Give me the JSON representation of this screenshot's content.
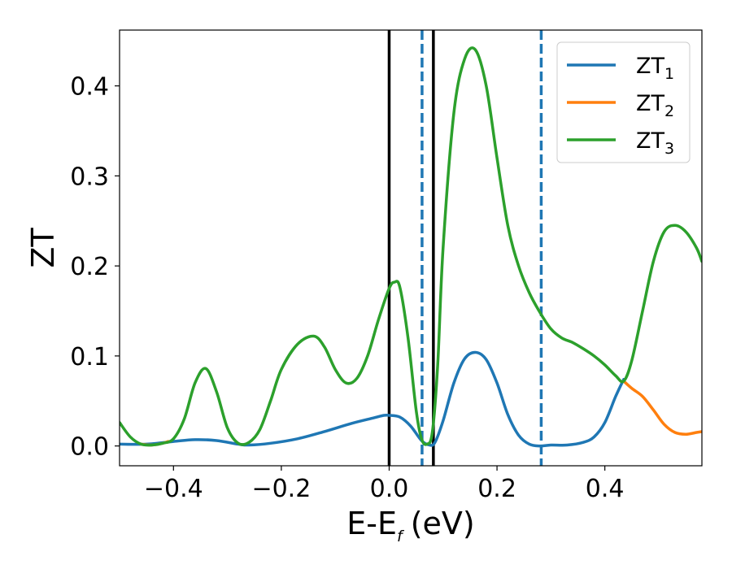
{
  "chart_data": {
    "type": "line",
    "xlabel": "E-E",
    "xlabel_sub": "f",
    "xlabel_unit": "(eV)",
    "ylabel": "ZT",
    "xlim": [
      -0.5,
      0.58
    ],
    "ylim": [
      -0.022,
      0.462
    ],
    "x_ticks": [
      -0.4,
      -0.2,
      0.0,
      0.2,
      0.4
    ],
    "x_tick_labels": [
      "−0.4",
      "−0.2",
      "0.0",
      "0.2",
      "0.4"
    ],
    "y_ticks": [
      0.0,
      0.1,
      0.2,
      0.3,
      0.4
    ],
    "y_tick_labels": [
      "0.0",
      "0.1",
      "0.2",
      "0.3",
      "0.4"
    ],
    "grid": false,
    "legend_position": "top-right",
    "vertical_lines": [
      {
        "x": 0.0,
        "style": "solid",
        "color": "#000000"
      },
      {
        "x": 0.082,
        "style": "solid",
        "color": "#000000"
      },
      {
        "x": 0.061,
        "style": "dashed",
        "color": "#1f77b4"
      },
      {
        "x": 0.282,
        "style": "dashed",
        "color": "#1f77b4"
      }
    ],
    "series": [
      {
        "name": "ZT",
        "name_sub": "1",
        "color": "#1f77b4",
        "points": [
          [
            -0.5,
            0.002
          ],
          [
            -0.45,
            0.002
          ],
          [
            -0.4,
            0.005
          ],
          [
            -0.36,
            0.007
          ],
          [
            -0.32,
            0.006
          ],
          [
            -0.28,
            0.002
          ],
          [
            -0.26,
            0.001
          ],
          [
            -0.22,
            0.003
          ],
          [
            -0.17,
            0.008
          ],
          [
            -0.12,
            0.016
          ],
          [
            -0.07,
            0.025
          ],
          [
            -0.03,
            0.031
          ],
          [
            -0.01,
            0.034
          ],
          [
            0.0,
            0.034
          ],
          [
            0.02,
            0.032
          ],
          [
            0.04,
            0.022
          ],
          [
            0.06,
            0.006
          ],
          [
            0.075,
            0.001
          ],
          [
            0.085,
            0.004
          ],
          [
            0.1,
            0.028
          ],
          [
            0.12,
            0.07
          ],
          [
            0.14,
            0.097
          ],
          [
            0.16,
            0.104
          ],
          [
            0.18,
            0.096
          ],
          [
            0.2,
            0.07
          ],
          [
            0.22,
            0.035
          ],
          [
            0.24,
            0.012
          ],
          [
            0.26,
            0.002
          ],
          [
            0.28,
            0.0
          ],
          [
            0.3,
            0.001
          ],
          [
            0.33,
            0.001
          ],
          [
            0.36,
            0.004
          ],
          [
            0.38,
            0.01
          ],
          [
            0.4,
            0.026
          ],
          [
            0.42,
            0.055
          ],
          [
            0.435,
            0.074
          ]
        ]
      },
      {
        "name": "ZT",
        "name_sub": "2",
        "color": "#ff7f0e",
        "points": [
          [
            -0.46,
            0.002
          ],
          [
            -0.44,
            0.001
          ],
          [
            -0.42,
            0.003
          ],
          [
            -0.41,
            0.005
          ],
          [
            0.435,
            0.072
          ],
          [
            0.45,
            0.064
          ],
          [
            0.47,
            0.055
          ],
          [
            0.49,
            0.04
          ],
          [
            0.51,
            0.024
          ],
          [
            0.53,
            0.015
          ],
          [
            0.55,
            0.013
          ],
          [
            0.57,
            0.015
          ],
          [
            0.58,
            0.016
          ]
        ]
      },
      {
        "name": "ZT",
        "name_sub": "3",
        "color": "#2ca02c",
        "points": [
          [
            -0.5,
            0.026
          ],
          [
            -0.48,
            0.01
          ],
          [
            -0.46,
            0.002
          ],
          [
            -0.44,
            0.001
          ],
          [
            -0.42,
            0.003
          ],
          [
            -0.4,
            0.008
          ],
          [
            -0.38,
            0.03
          ],
          [
            -0.36,
            0.07
          ],
          [
            -0.34,
            0.086
          ],
          [
            -0.32,
            0.06
          ],
          [
            -0.3,
            0.02
          ],
          [
            -0.28,
            0.003
          ],
          [
            -0.26,
            0.004
          ],
          [
            -0.24,
            0.018
          ],
          [
            -0.22,
            0.05
          ],
          [
            -0.2,
            0.085
          ],
          [
            -0.17,
            0.113
          ],
          [
            -0.14,
            0.122
          ],
          [
            -0.12,
            0.11
          ],
          [
            -0.1,
            0.085
          ],
          [
            -0.08,
            0.07
          ],
          [
            -0.06,
            0.075
          ],
          [
            -0.04,
            0.1
          ],
          [
            -0.02,
            0.14
          ],
          [
            0.0,
            0.175
          ],
          [
            0.01,
            0.182
          ],
          [
            0.02,
            0.176
          ],
          [
            0.035,
            0.12
          ],
          [
            0.05,
            0.04
          ],
          [
            0.06,
            0.008
          ],
          [
            0.07,
            0.002
          ],
          [
            0.08,
            0.015
          ],
          [
            0.09,
            0.09
          ],
          [
            0.1,
            0.22
          ],
          [
            0.12,
            0.37
          ],
          [
            0.14,
            0.43
          ],
          [
            0.16,
            0.44
          ],
          [
            0.18,
            0.4
          ],
          [
            0.2,
            0.32
          ],
          [
            0.22,
            0.245
          ],
          [
            0.24,
            0.2
          ],
          [
            0.26,
            0.17
          ],
          [
            0.28,
            0.148
          ],
          [
            0.3,
            0.13
          ],
          [
            0.32,
            0.12
          ],
          [
            0.34,
            0.115
          ],
          [
            0.36,
            0.108
          ],
          [
            0.38,
            0.1
          ],
          [
            0.4,
            0.09
          ],
          [
            0.42,
            0.078
          ],
          [
            0.435,
            0.072
          ],
          [
            0.45,
            0.095
          ],
          [
            0.47,
            0.15
          ],
          [
            0.49,
            0.205
          ],
          [
            0.51,
            0.238
          ],
          [
            0.53,
            0.245
          ],
          [
            0.55,
            0.238
          ],
          [
            0.57,
            0.22
          ],
          [
            0.58,
            0.205
          ]
        ]
      }
    ]
  }
}
